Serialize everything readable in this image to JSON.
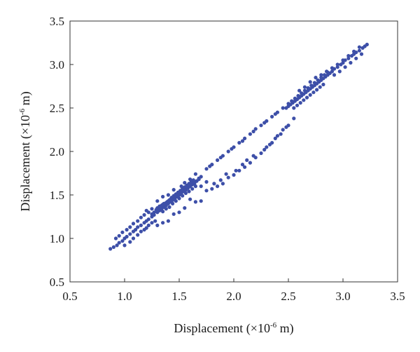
{
  "chart_data": {
    "type": "scatter",
    "title": "",
    "xlabel": {
      "prefix": "Displacement (×10",
      "exponent": "-6",
      "suffix": " m)"
    },
    "ylabel": {
      "prefix": "Displacement (×10",
      "exponent": "-6",
      "suffix": " m)"
    },
    "xlim": [
      0.5,
      3.5
    ],
    "ylim": [
      0.5,
      3.5
    ],
    "xticks": [
      "0.5",
      "1.0",
      "1.5",
      "2.0",
      "2.5",
      "3.0",
      "3.5"
    ],
    "yticks": [
      "0.5",
      "1.0",
      "1.5",
      "2.0",
      "2.5",
      "3.0",
      "3.5"
    ],
    "grid": false,
    "legend": "none",
    "marker_color": "#3d4fa8",
    "series": [
      {
        "points": [
          [
            0.87,
            0.88
          ],
          [
            0.9,
            0.9
          ],
          [
            0.93,
            0.92
          ],
          [
            0.95,
            0.95
          ],
          [
            0.98,
            0.97
          ],
          [
            1.0,
            1.0
          ],
          [
            1.02,
            1.02
          ],
          [
            1.05,
            1.05
          ],
          [
            1.08,
            1.08
          ],
          [
            1.1,
            1.1
          ],
          [
            1.12,
            1.13
          ],
          [
            1.15,
            1.15
          ],
          [
            1.18,
            1.18
          ],
          [
            1.2,
            1.2
          ],
          [
            1.22,
            1.22
          ],
          [
            1.25,
            1.25
          ],
          [
            1.27,
            1.27
          ],
          [
            1.3,
            1.3
          ],
          [
            1.32,
            1.32
          ],
          [
            1.34,
            1.34
          ],
          [
            1.36,
            1.36
          ],
          [
            1.38,
            1.38
          ],
          [
            1.4,
            1.4
          ],
          [
            1.42,
            1.42
          ],
          [
            1.44,
            1.44
          ],
          [
            1.46,
            1.46
          ],
          [
            1.48,
            1.48
          ],
          [
            1.5,
            1.5
          ],
          [
            1.52,
            1.52
          ],
          [
            1.54,
            1.54
          ],
          [
            1.56,
            1.56
          ],
          [
            1.58,
            1.58
          ],
          [
            1.6,
            1.6
          ],
          [
            1.62,
            1.62
          ],
          [
            1.64,
            1.64
          ],
          [
            1.66,
            1.66
          ],
          [
            1.68,
            1.69
          ],
          [
            1.7,
            1.71
          ],
          [
            1.3,
            1.35
          ],
          [
            1.32,
            1.37
          ],
          [
            1.34,
            1.38
          ],
          [
            1.36,
            1.4
          ],
          [
            1.38,
            1.41
          ],
          [
            1.4,
            1.43
          ],
          [
            1.42,
            1.45
          ],
          [
            1.44,
            1.46
          ],
          [
            1.46,
            1.48
          ],
          [
            1.48,
            1.5
          ],
          [
            1.5,
            1.51
          ],
          [
            1.52,
            1.53
          ],
          [
            1.54,
            1.55
          ],
          [
            1.56,
            1.56
          ],
          [
            1.58,
            1.58
          ],
          [
            1.6,
            1.6
          ],
          [
            1.62,
            1.62
          ],
          [
            1.64,
            1.63
          ],
          [
            1.66,
            1.66
          ],
          [
            1.68,
            1.68
          ],
          [
            1.25,
            1.28
          ],
          [
            1.27,
            1.3
          ],
          [
            1.29,
            1.33
          ],
          [
            1.31,
            1.35
          ],
          [
            1.33,
            1.36
          ],
          [
            1.35,
            1.39
          ],
          [
            1.37,
            1.4
          ],
          [
            1.39,
            1.42
          ],
          [
            1.41,
            1.44
          ],
          [
            1.43,
            1.47
          ],
          [
            1.45,
            1.49
          ],
          [
            1.47,
            1.51
          ],
          [
            1.49,
            1.53
          ],
          [
            1.51,
            1.55
          ],
          [
            1.53,
            1.57
          ],
          [
            1.55,
            1.59
          ],
          [
            1.57,
            1.61
          ],
          [
            1.59,
            1.63
          ],
          [
            1.61,
            1.65
          ],
          [
            1.63,
            1.67
          ],
          [
            1.35,
            1.31
          ],
          [
            1.38,
            1.34
          ],
          [
            1.41,
            1.36
          ],
          [
            1.44,
            1.4
          ],
          [
            1.47,
            1.43
          ],
          [
            1.5,
            1.46
          ],
          [
            1.53,
            1.49
          ],
          [
            1.56,
            1.52
          ],
          [
            1.59,
            1.54
          ],
          [
            1.62,
            1.57
          ],
          [
            1.65,
            1.6
          ],
          [
            1.0,
            0.92
          ],
          [
            1.05,
            0.96
          ],
          [
            1.08,
            1.0
          ],
          [
            1.12,
            1.04
          ],
          [
            1.15,
            1.08
          ],
          [
            1.18,
            1.1
          ],
          [
            1.2,
            1.12
          ],
          [
            1.22,
            1.15
          ],
          [
            1.25,
            1.18
          ],
          [
            1.28,
            1.2
          ],
          [
            0.92,
            1.0
          ],
          [
            0.95,
            1.03
          ],
          [
            0.98,
            1.07
          ],
          [
            1.02,
            1.1
          ],
          [
            1.05,
            1.13
          ],
          [
            1.08,
            1.17
          ],
          [
            1.12,
            1.2
          ],
          [
            1.15,
            1.24
          ],
          [
            1.18,
            1.27
          ],
          [
            1.22,
            1.3
          ],
          [
            1.2,
            1.32
          ],
          [
            1.25,
            1.34
          ],
          [
            1.3,
            1.43
          ],
          [
            1.35,
            1.48
          ],
          [
            1.4,
            1.5
          ],
          [
            1.45,
            1.56
          ],
          [
            1.52,
            1.6
          ],
          [
            1.55,
            1.64
          ],
          [
            1.6,
            1.68
          ],
          [
            1.65,
            1.74
          ],
          [
            1.7,
            1.6
          ],
          [
            1.75,
            1.55
          ],
          [
            1.8,
            1.57
          ],
          [
            1.85,
            1.6
          ],
          [
            1.9,
            1.63
          ],
          [
            1.95,
            1.7
          ],
          [
            2.0,
            1.73
          ],
          [
            2.05,
            1.78
          ],
          [
            2.1,
            1.82
          ],
          [
            2.15,
            1.87
          ],
          [
            2.2,
            1.93
          ],
          [
            2.25,
            1.98
          ],
          [
            2.3,
            2.05
          ],
          [
            2.35,
            2.1
          ],
          [
            2.4,
            2.18
          ],
          [
            2.45,
            2.25
          ],
          [
            2.5,
            2.3
          ],
          [
            2.55,
            2.38
          ],
          [
            1.75,
            1.65
          ],
          [
            1.82,
            1.63
          ],
          [
            1.88,
            1.67
          ],
          [
            1.93,
            1.74
          ],
          [
            2.02,
            1.78
          ],
          [
            2.08,
            1.85
          ],
          [
            2.12,
            1.9
          ],
          [
            2.18,
            1.95
          ],
          [
            2.28,
            2.02
          ],
          [
            2.33,
            2.08
          ],
          [
            2.38,
            2.15
          ],
          [
            2.43,
            2.2
          ],
          [
            2.48,
            2.28
          ],
          [
            1.6,
            1.45
          ],
          [
            1.65,
            1.42
          ],
          [
            1.7,
            1.43
          ],
          [
            1.55,
            1.35
          ],
          [
            1.5,
            1.3
          ],
          [
            1.45,
            1.28
          ],
          [
            1.4,
            1.2
          ],
          [
            1.35,
            1.18
          ],
          [
            1.3,
            1.15
          ],
          [
            1.75,
            1.8
          ],
          [
            1.8,
            1.85
          ],
          [
            1.85,
            1.9
          ],
          [
            1.9,
            1.95
          ],
          [
            1.95,
            2.0
          ],
          [
            2.0,
            2.05
          ],
          [
            2.05,
            2.1
          ],
          [
            2.1,
            2.15
          ],
          [
            2.15,
            2.2
          ],
          [
            2.2,
            2.26
          ],
          [
            2.25,
            2.3
          ],
          [
            2.3,
            2.35
          ],
          [
            2.35,
            2.4
          ],
          [
            2.4,
            2.45
          ],
          [
            2.45,
            2.5
          ],
          [
            1.78,
            1.83
          ],
          [
            1.88,
            1.93
          ],
          [
            1.98,
            2.03
          ],
          [
            2.08,
            2.12
          ],
          [
            2.18,
            2.23
          ],
          [
            2.28,
            2.33
          ],
          [
            2.38,
            2.43
          ],
          [
            2.48,
            2.5
          ],
          [
            2.5,
            2.52
          ],
          [
            2.52,
            2.54
          ],
          [
            2.54,
            2.56
          ],
          [
            2.56,
            2.58
          ],
          [
            2.58,
            2.6
          ],
          [
            2.6,
            2.62
          ],
          [
            2.62,
            2.64
          ],
          [
            2.64,
            2.66
          ],
          [
            2.66,
            2.68
          ],
          [
            2.68,
            2.7
          ],
          [
            2.7,
            2.72
          ],
          [
            2.72,
            2.74
          ],
          [
            2.74,
            2.76
          ],
          [
            2.76,
            2.78
          ],
          [
            2.78,
            2.8
          ],
          [
            2.8,
            2.82
          ],
          [
            2.82,
            2.84
          ],
          [
            2.84,
            2.86
          ],
          [
            2.86,
            2.88
          ],
          [
            2.5,
            2.55
          ],
          [
            2.53,
            2.58
          ],
          [
            2.56,
            2.61
          ],
          [
            2.59,
            2.64
          ],
          [
            2.62,
            2.67
          ],
          [
            2.65,
            2.7
          ],
          [
            2.68,
            2.73
          ],
          [
            2.71,
            2.76
          ],
          [
            2.74,
            2.79
          ],
          [
            2.77,
            2.82
          ],
          [
            2.8,
            2.85
          ],
          [
            2.83,
            2.88
          ],
          [
            2.86,
            2.91
          ],
          [
            2.55,
            2.5
          ],
          [
            2.58,
            2.53
          ],
          [
            2.61,
            2.56
          ],
          [
            2.64,
            2.59
          ],
          [
            2.67,
            2.62
          ],
          [
            2.7,
            2.65
          ],
          [
            2.73,
            2.68
          ],
          [
            2.76,
            2.71
          ],
          [
            2.79,
            2.74
          ],
          [
            2.82,
            2.77
          ],
          [
            2.6,
            2.7
          ],
          [
            2.65,
            2.74
          ],
          [
            2.7,
            2.8
          ],
          [
            2.75,
            2.85
          ],
          [
            2.8,
            2.88
          ],
          [
            2.85,
            2.92
          ],
          [
            2.88,
            2.9
          ],
          [
            2.9,
            2.92
          ],
          [
            2.92,
            2.95
          ],
          [
            2.95,
            2.97
          ],
          [
            2.98,
            3.0
          ],
          [
            3.0,
            3.02
          ],
          [
            3.02,
            3.05
          ],
          [
            3.05,
            3.07
          ],
          [
            3.08,
            3.1
          ],
          [
            3.1,
            3.12
          ],
          [
            3.12,
            3.14
          ],
          [
            3.15,
            3.16
          ],
          [
            3.18,
            3.19
          ],
          [
            3.2,
            3.21
          ],
          [
            3.22,
            3.23
          ],
          [
            2.9,
            2.96
          ],
          [
            2.95,
            3.0
          ],
          [
            3.0,
            3.05
          ],
          [
            3.05,
            3.1
          ],
          [
            3.1,
            3.15
          ],
          [
            3.15,
            3.2
          ],
          [
            2.92,
            2.88
          ],
          [
            2.97,
            2.92
          ],
          [
            3.02,
            2.97
          ],
          [
            3.07,
            3.02
          ],
          [
            3.12,
            3.07
          ],
          [
            3.17,
            3.12
          ]
        ]
      }
    ]
  }
}
